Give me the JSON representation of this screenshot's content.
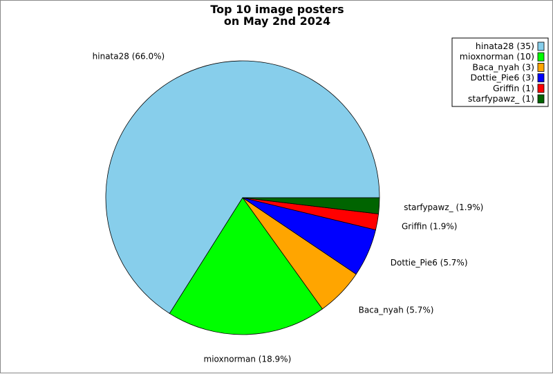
{
  "chart_data": {
    "type": "pie",
    "title_lines": [
      "Top 10 image posters",
      "on May 2nd 2024"
    ],
    "legend_placement": "top-right",
    "slices": [
      {
        "name": "hinata28",
        "value": 35,
        "percent_label": "hinata28 (66.0%)",
        "legend_label": "hinata28 (35)",
        "color": "#87CEEB"
      },
      {
        "name": "mioxnorman",
        "value": 10,
        "percent_label": "mioxnorman (18.9%)",
        "legend_label": "mioxnorman (10)",
        "color": "#00FF00"
      },
      {
        "name": "Baca_nyah",
        "value": 3,
        "percent_label": "Baca_nyah (5.7%)",
        "legend_label": "Baca_nyah (3)",
        "color": "#FFA500"
      },
      {
        "name": "Dottie_Pie6",
        "value": 3,
        "percent_label": "Dottie_Pie6 (5.7%)",
        "legend_label": "Dottie_Pie6 (3)",
        "color": "#0000FF"
      },
      {
        "name": "Griffin",
        "value": 1,
        "percent_label": "Griffin (1.9%)",
        "legend_label": "Griffin (1)",
        "color": "#FF0000"
      },
      {
        "name": "starfypawz_",
        "value": 1,
        "percent_label": "starfypawz_ (1.9%)",
        "legend_label": "starfypawz_ (1)",
        "color": "#006400"
      }
    ]
  }
}
